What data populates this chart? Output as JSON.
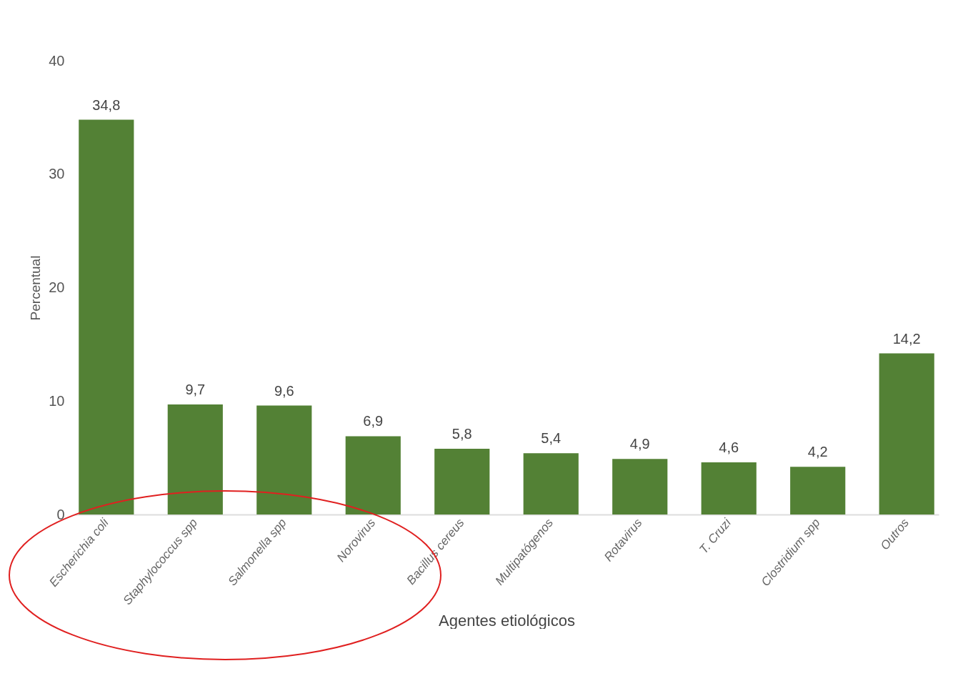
{
  "chart_data": {
    "type": "bar",
    "xlabel": "Agentes etiológicos",
    "ylabel": "Percentual",
    "categories": [
      "Escherichia coli",
      "Staphylococcus spp",
      "Salmonella spp",
      "Norovirus",
      "Bacillus cereus",
      "Multipatógenos",
      "Rotavirus",
      "T. Cruzi",
      "Clostridium spp",
      "Outros"
    ],
    "values": [
      34.8,
      9.7,
      9.6,
      6.9,
      5.8,
      5.4,
      4.9,
      4.6,
      4.2,
      14.2
    ],
    "value_labels": [
      "34,8",
      "9,7",
      "9,6",
      "6,9",
      "5,8",
      "5,4",
      "4,9",
      "4,6",
      "4,2",
      "14,2"
    ],
    "color": "#538135",
    "ylim": [
      0,
      40
    ],
    "yticks": [
      0,
      10,
      20,
      30,
      40
    ],
    "grid": false
  }
}
